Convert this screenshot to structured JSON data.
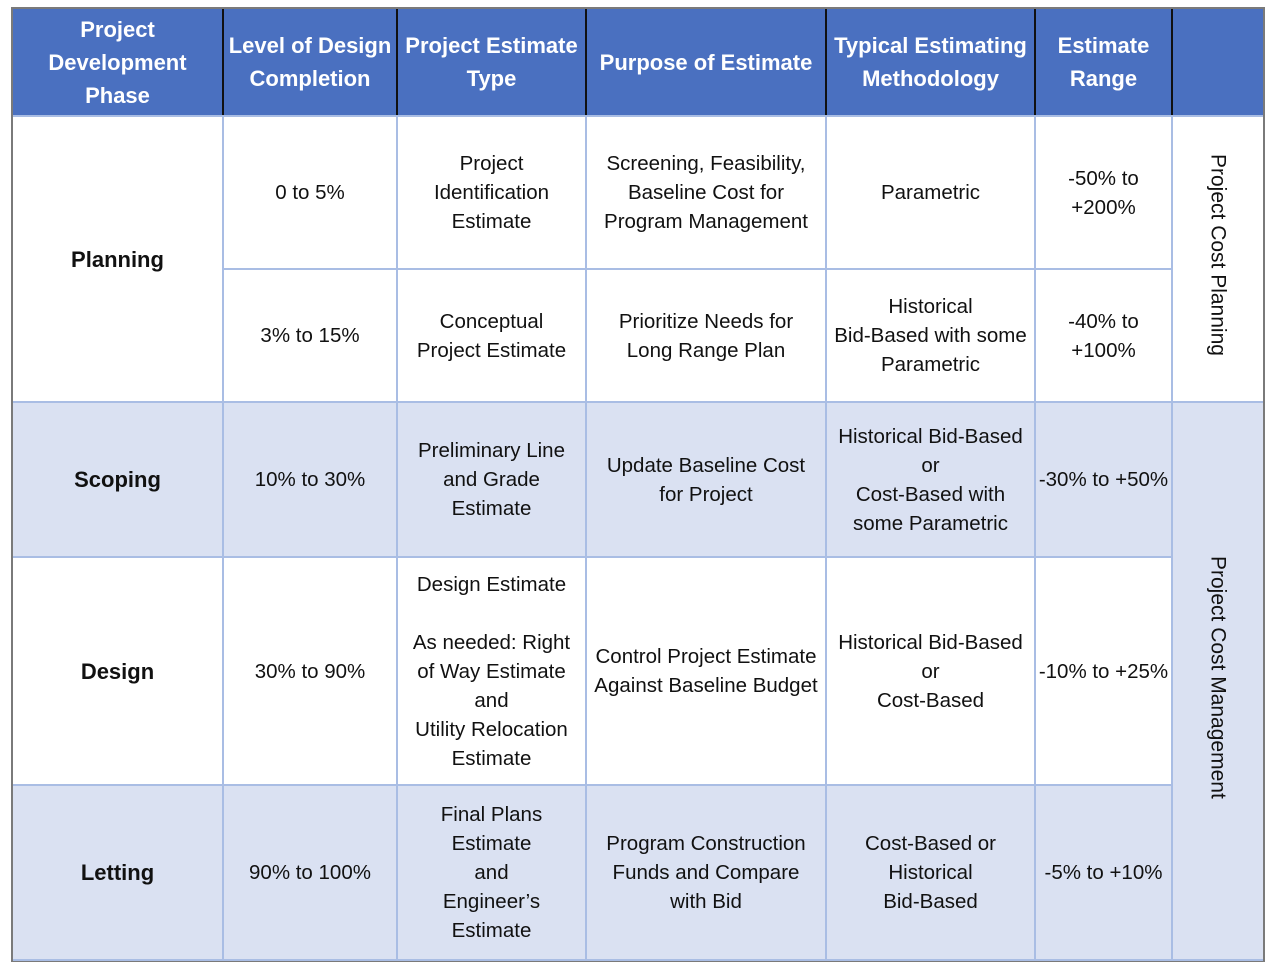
{
  "headers": [
    "Project Development Phase",
    "Level of Design Completion",
    "Project Estimate Type",
    "Purpose of Estimate",
    "Typical Estimating Methodology",
    "Estimate Range",
    ""
  ],
  "rows": [
    {
      "phase": "Planning",
      "level": "0 to 5%",
      "type": "Project\nIdentification\nEstimate",
      "purpose": "Screening, Feasibility,\nBaseline Cost for\nProgram Management",
      "method": "Parametric",
      "range": "-50% to\n+200%"
    },
    {
      "phase": "",
      "level": "3% to 15%",
      "type": "Conceptual\nProject Estimate",
      "purpose": "Prioritize Needs for\nLong Range Plan",
      "method": "Historical\nBid-Based with some\nParametric",
      "range": "-40% to\n+100%"
    },
    {
      "phase": "Scoping",
      "level": "10% to 30%",
      "type": "Preliminary Line\nand Grade\nEstimate",
      "purpose": "Update Baseline Cost\nfor Project",
      "method": "Historical Bid-Based\nor\nCost-Based with\nsome Parametric",
      "range": "-30% to +50%"
    },
    {
      "phase": "Design",
      "level": "30% to 90%",
      "type": "Design Estimate\n\nAs needed: Right\nof Way Estimate\nand\nUtility Relocation\nEstimate",
      "purpose": "Control Project Estimate\nAgainst Baseline Budget",
      "method": "Historical Bid-Based\nor\nCost-Based",
      "range": "-10% to +25%"
    },
    {
      "phase": "Letting",
      "level": "90% to 100%",
      "type": "Final Plans\nEstimate\nand\nEngineer’s\nEstimate",
      "purpose": "Program Construction\nFunds and Compare\nwith Bid",
      "method": "Cost-Based or\nHistorical\nBid-Based",
      "range": "-5% to +10%"
    }
  ],
  "side_labels": {
    "planning": "Project Cost Planning",
    "management": "Project Cost Management"
  },
  "colors": {
    "header": "#4a70c0",
    "shade": "#dae1f2",
    "grid": "#a9bde4"
  }
}
